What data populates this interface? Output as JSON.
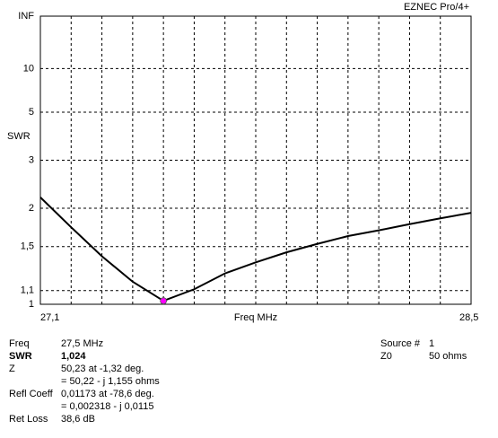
{
  "chart_data": {
    "type": "line",
    "program": "EZNEC Pro/4+",
    "xlabel": "Freq MHz",
    "ylabel": "SWR",
    "yscale": "reflection",
    "x": [
      27.1,
      27.2,
      27.3,
      27.4,
      27.5,
      27.6,
      27.7,
      27.8,
      27.9,
      28.0,
      28.1,
      28.2,
      28.3,
      28.4,
      28.5
    ],
    "series": [
      {
        "name": "SWR",
        "color": "#000000",
        "values": [
          2.18,
          1.73,
          1.4,
          1.17,
          1.024,
          1.11,
          1.24,
          1.34,
          1.44,
          1.53,
          1.62,
          1.69,
          1.77,
          1.85,
          1.93
        ]
      }
    ],
    "marker_color": "#ff00ff",
    "xlim": [
      27.1,
      28.5
    ],
    "xticks": [
      {
        "value": 27.1,
        "label": "27,1"
      },
      {
        "value": 28.5,
        "label": "28,5"
      }
    ],
    "xgrid": [
      27.2,
      27.3,
      27.4,
      27.5,
      27.6,
      27.7,
      27.8,
      27.9,
      28.0,
      28.1,
      28.2,
      28.3,
      28.4
    ],
    "ylim": [
      1,
      null
    ],
    "yticks": [
      1,
      {
        "value": 1.1,
        "label": "1,1"
      },
      {
        "value": 1.5,
        "label": "1,5"
      },
      2,
      3,
      5,
      10,
      {
        "value": null,
        "label": "INF"
      }
    ],
    "grid": true
  },
  "readout": {
    "left": [
      [
        "Freq",
        "27,5 MHz"
      ],
      [
        "SWR",
        "1,024"
      ],
      [
        "Z",
        "50,23 at -1,32 deg."
      ],
      [
        "",
        "= 50,22 - j 1,155 ohms"
      ],
      [
        "Refl Coeff",
        "0,01173 at -78,6 deg."
      ],
      [
        "",
        "= 0,002318 - j 0,0115"
      ],
      [
        "Ret Loss",
        "38,6 dB"
      ]
    ],
    "right": [
      [
        "Source #",
        "1"
      ],
      [
        "Z0",
        "50 ohms"
      ]
    ]
  }
}
